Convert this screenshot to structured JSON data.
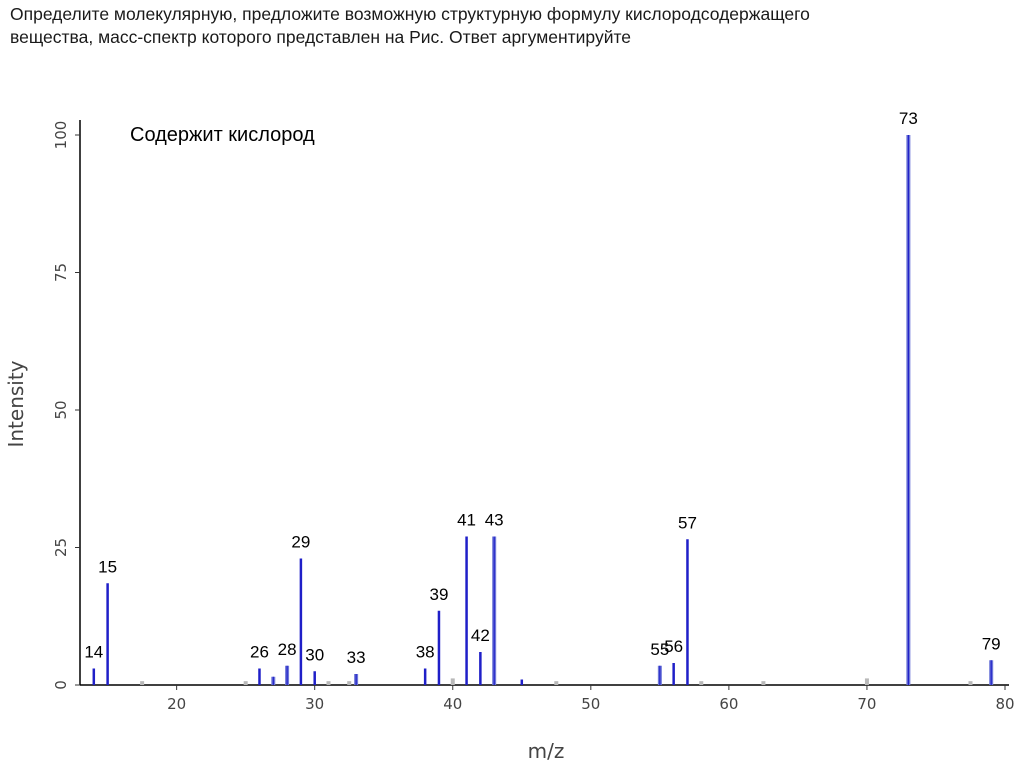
{
  "task": {
    "line1": "Определите молекулярную, предложите возможную структурную формулу кислородсодержащего",
    "line2": "вещества, масс-спектр которого представлен на Рис. Ответ аргументируйте"
  },
  "chart_data": {
    "type": "bar",
    "title": "",
    "annotation": "Содержит кислород",
    "xlabel": "m/z",
    "ylabel": "Intensity",
    "xlim": [
      13,
      80
    ],
    "ylim": [
      0,
      100
    ],
    "x_ticks": [
      20,
      30,
      40,
      50,
      60,
      70,
      80
    ],
    "y_ticks": [
      0,
      25,
      50,
      75,
      100
    ],
    "grid": false,
    "colors": {
      "main": "#1f1fc8",
      "secondary": "#6f78d8",
      "faint": "#b9b9b9",
      "axis": "#000000"
    },
    "peaks": [
      {
        "mz": 14,
        "intensity": 3,
        "label": "14",
        "style": "main"
      },
      {
        "mz": 15,
        "intensity": 18.5,
        "label": "15",
        "style": "main"
      },
      {
        "mz": 26,
        "intensity": 3,
        "label": "26",
        "style": "main"
      },
      {
        "mz": 27,
        "intensity": 1.5,
        "label": "",
        "style": "secondary"
      },
      {
        "mz": 28,
        "intensity": 3.5,
        "label": "28",
        "style": "secondary"
      },
      {
        "mz": 29,
        "intensity": 23,
        "label": "29",
        "style": "main"
      },
      {
        "mz": 30,
        "intensity": 2.5,
        "label": "30",
        "style": "main"
      },
      {
        "mz": 33,
        "intensity": 2,
        "label": "33",
        "style": "secondary"
      },
      {
        "mz": 38,
        "intensity": 3,
        "label": "38",
        "style": "main"
      },
      {
        "mz": 39,
        "intensity": 13.5,
        "label": "39",
        "style": "main"
      },
      {
        "mz": 41,
        "intensity": 27,
        "label": "41",
        "style": "main"
      },
      {
        "mz": 42,
        "intensity": 6,
        "label": "42",
        "style": "main"
      },
      {
        "mz": 43,
        "intensity": 27,
        "label": "43",
        "style": "secondary"
      },
      {
        "mz": 45,
        "intensity": 1,
        "label": "",
        "style": "main"
      },
      {
        "mz": 55,
        "intensity": 3.5,
        "label": "55",
        "style": "secondary"
      },
      {
        "mz": 56,
        "intensity": 4,
        "label": "56",
        "style": "main"
      },
      {
        "mz": 57,
        "intensity": 26.5,
        "label": "57",
        "style": "main"
      },
      {
        "mz": 73,
        "intensity": 100,
        "label": "73",
        "style": "secondary"
      },
      {
        "mz": 79,
        "intensity": 4.5,
        "label": "79",
        "style": "secondary"
      }
    ],
    "faint_peaks": [
      {
        "mz": 17.5,
        "intensity": 0.7
      },
      {
        "mz": 25,
        "intensity": 0.7
      },
      {
        "mz": 31,
        "intensity": 0.7
      },
      {
        "mz": 32.5,
        "intensity": 0.7
      },
      {
        "mz": 40,
        "intensity": 1.2
      },
      {
        "mz": 47.5,
        "intensity": 0.7
      },
      {
        "mz": 58,
        "intensity": 0.7
      },
      {
        "mz": 62.5,
        "intensity": 0.7
      },
      {
        "mz": 70,
        "intensity": 1.2
      },
      {
        "mz": 77.5,
        "intensity": 0.7
      }
    ]
  }
}
